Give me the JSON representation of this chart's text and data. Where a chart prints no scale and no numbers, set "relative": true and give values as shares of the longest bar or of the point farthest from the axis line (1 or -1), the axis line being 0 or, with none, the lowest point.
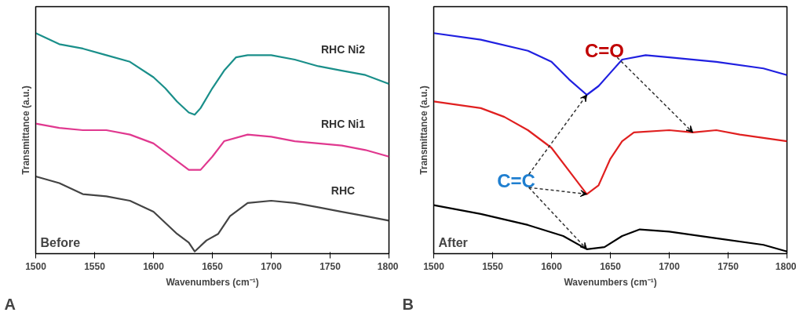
{
  "chart_data": [
    {
      "type": "line",
      "relative": true,
      "xlabel": "Wavenumbers (cm⁻¹)",
      "ylabel": "Transmittance (a.u.)",
      "xlim": [
        1500,
        1800
      ],
      "xticks": [
        1500,
        1550,
        1600,
        1650,
        1700,
        1750,
        1800
      ],
      "tick_labels": "x",
      "grid": false,
      "annotations": [
        "Before",
        "A"
      ],
      "series": [
        {
          "name": "RHC Ni2",
          "color": "#1a8f8a",
          "x": [
            1500,
            1520,
            1540,
            1560,
            1580,
            1600,
            1610,
            1620,
            1630,
            1635,
            1640,
            1650,
            1660,
            1670,
            1680,
            1700,
            1720,
            1740,
            1760,
            1780,
            1800
          ],
          "values": [
            1.0,
            0.95,
            0.93,
            0.9,
            0.87,
            0.8,
            0.75,
            0.69,
            0.64,
            0.63,
            0.66,
            0.75,
            0.83,
            0.89,
            0.9,
            0.9,
            0.88,
            0.85,
            0.83,
            0.81,
            0.77
          ]
        },
        {
          "name": "RHC Ni1",
          "color": "#e0388f",
          "x": [
            1500,
            1520,
            1540,
            1560,
            1580,
            1600,
            1620,
            1630,
            1640,
            1650,
            1660,
            1680,
            1700,
            1720,
            1740,
            1760,
            1780,
            1800
          ],
          "values": [
            0.59,
            0.57,
            0.56,
            0.56,
            0.54,
            0.5,
            0.42,
            0.38,
            0.38,
            0.44,
            0.51,
            0.54,
            0.53,
            0.51,
            0.5,
            0.49,
            0.47,
            0.44
          ]
        },
        {
          "name": "RHC",
          "color": "#444444",
          "x": [
            1500,
            1520,
            1540,
            1560,
            1580,
            1600,
            1620,
            1630,
            1635,
            1645,
            1655,
            1665,
            1680,
            1700,
            1720,
            1740,
            1760,
            1780,
            1800
          ],
          "values": [
            0.35,
            0.32,
            0.27,
            0.26,
            0.24,
            0.19,
            0.09,
            0.05,
            0.01,
            0.06,
            0.09,
            0.17,
            0.23,
            0.24,
            0.23,
            0.21,
            0.19,
            0.17,
            0.15
          ]
        }
      ]
    },
    {
      "type": "line",
      "relative": true,
      "xlabel": "Wavenumbers (cm⁻¹)",
      "ylabel": "Transmittance (a.u.)",
      "xlim": [
        1500,
        1800
      ],
      "xticks": [
        1500,
        1550,
        1600,
        1650,
        1700,
        1750,
        1800
      ],
      "tick_labels": "x",
      "grid": false,
      "annotations": [
        "After",
        "B",
        {
          "text": "C=O",
          "x": 1720,
          "y": 0.55
        },
        {
          "text": "C=C",
          "x": 1630,
          "y": 0.27
        }
      ],
      "series": [
        {
          "color": "#2020e0",
          "x": [
            1500,
            1540,
            1580,
            1600,
            1615,
            1630,
            1640,
            1650,
            1660,
            1680,
            1700,
            1740,
            1780,
            1800
          ],
          "values": [
            1.0,
            0.97,
            0.92,
            0.87,
            0.79,
            0.72,
            0.76,
            0.82,
            0.88,
            0.9,
            0.89,
            0.87,
            0.84,
            0.81
          ]
        },
        {
          "color": "#e02020",
          "x": [
            1500,
            1540,
            1560,
            1580,
            1600,
            1620,
            1630,
            1640,
            1650,
            1660,
            1670,
            1700,
            1720,
            1740,
            1760,
            1800
          ],
          "values": [
            0.69,
            0.66,
            0.62,
            0.56,
            0.48,
            0.34,
            0.27,
            0.31,
            0.43,
            0.51,
            0.55,
            0.56,
            0.55,
            0.56,
            0.54,
            0.51
          ]
        },
        {
          "color": "#000000",
          "x": [
            1500,
            1540,
            1580,
            1610,
            1630,
            1645,
            1660,
            1675,
            1700,
            1740,
            1780,
            1800
          ],
          "values": [
            0.22,
            0.18,
            0.13,
            0.08,
            0.02,
            0.03,
            0.08,
            0.11,
            0.1,
            0.07,
            0.04,
            0.01
          ]
        }
      ]
    }
  ]
}
